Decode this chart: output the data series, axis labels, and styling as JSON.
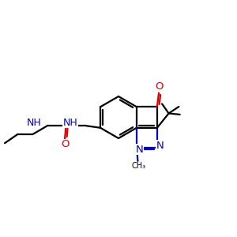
{
  "background_color": "#ffffff",
  "bond_color": "#000000",
  "n_color": "#0000cd",
  "o_color": "#dd0000",
  "bond_width": 1.6,
  "font_size": 8.5,
  "figsize": [
    3.0,
    3.0
  ],
  "dpi": 100,
  "xlim": [
    0,
    10
  ],
  "ylim": [
    0,
    10
  ]
}
